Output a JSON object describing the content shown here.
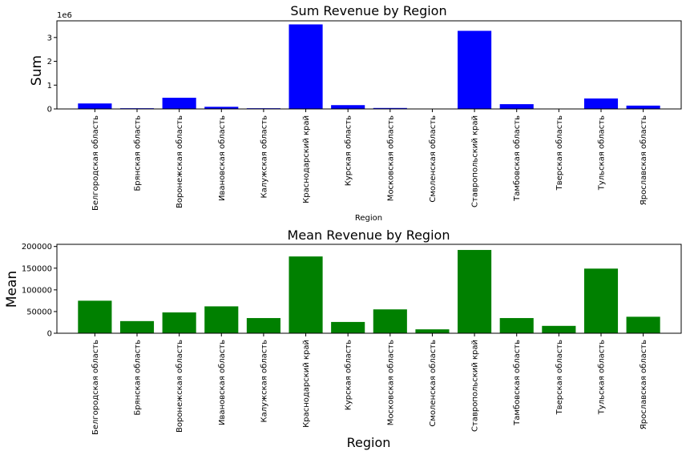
{
  "chart_data": [
    {
      "type": "bar",
      "title": "Sum Revenue by Region",
      "xlabel": "Region",
      "ylabel": "Sum",
      "offset_label": "1e6",
      "color": "#0000ff",
      "ylim": [
        0,
        3.7
      ],
      "yticks": [
        0,
        1,
        2,
        3
      ],
      "ytick_labels": [
        "0",
        "1",
        "2",
        "3"
      ],
      "categories": [
        "Белгородская область",
        "Брянская область",
        "Воронежская область",
        "Ивановская область",
        "Калужская область",
        "Краснодарский край",
        "Курская область",
        "Московская область",
        "Смоленская область",
        "Ставропольский край",
        "Тамбовская область",
        "Тверская область",
        "Тульская область",
        "Ярославская область"
      ],
      "values": [
        0.23,
        0.03,
        0.47,
        0.09,
        0.03,
        3.55,
        0.16,
        0.04,
        0.008,
        3.28,
        0.2,
        0.015,
        0.44,
        0.14
      ]
    },
    {
      "type": "bar",
      "title": "Mean Revenue by Region",
      "xlabel": "Region",
      "ylabel": "Mean",
      "color": "#008000",
      "ylim": [
        0,
        205000
      ],
      "yticks": [
        0,
        50000,
        100000,
        150000,
        200000
      ],
      "ytick_labels": [
        "0",
        "50000",
        "100000",
        "150000",
        "200000"
      ],
      "categories": [
        "Белгородская область",
        "Брянская область",
        "Воронежская область",
        "Ивановская область",
        "Калужская область",
        "Краснодарский край",
        "Курская область",
        "Московская область",
        "Смоленская область",
        "Ставропольский край",
        "Тамбовская область",
        "Тверская область",
        "Тульская область",
        "Ярославская область"
      ],
      "values": [
        75000,
        28000,
        48000,
        62000,
        35000,
        177000,
        26000,
        55000,
        9000,
        192000,
        35000,
        17000,
        149000,
        38000
      ]
    }
  ]
}
